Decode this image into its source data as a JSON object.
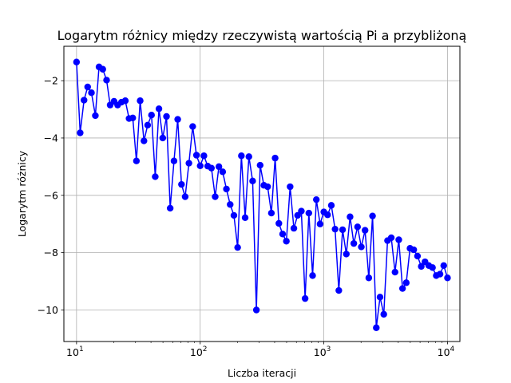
{
  "chart_data": {
    "type": "line",
    "title": "Logarytm różnicy między rzeczywistą wartością Pi a przybliżoną",
    "xlabel": "Liczba iteracji",
    "ylabel": "Logarytm różnicy",
    "x_scale": "log",
    "xlim": [
      7.9,
      12600
    ],
    "ylim": [
      -11.1,
      -0.8
    ],
    "grid": true,
    "x_ticks": [
      {
        "value": 10,
        "base": "10",
        "exp": "1"
      },
      {
        "value": 100,
        "base": "10",
        "exp": "2"
      },
      {
        "value": 1000,
        "base": "10",
        "exp": "3"
      },
      {
        "value": 10000,
        "base": "10",
        "exp": "4"
      }
    ],
    "y_ticks": [
      {
        "value": -10,
        "label": "−10"
      },
      {
        "value": -8,
        "label": "−8"
      },
      {
        "value": -6,
        "label": "−6"
      },
      {
        "value": -4,
        "label": "−4"
      },
      {
        "value": -2,
        "label": "−2"
      }
    ],
    "series": [
      {
        "color": "#0000ff",
        "marker": "circle",
        "x": [
          10,
          10.7,
          11.5,
          12.3,
          13.2,
          14.2,
          15.2,
          16.3,
          17.5,
          18.7,
          20.1,
          21.5,
          23.1,
          24.8,
          26.6,
          28.5,
          30.5,
          32.7,
          35.1,
          37.6,
          40.4,
          43.3,
          46.4,
          49.8,
          53.4,
          57.2,
          61.4,
          65.8,
          70.6,
          75.6,
          81.1,
          87,
          93.3,
          100,
          107.2,
          115,
          123.3,
          132.2,
          141.7,
          152,
          163,
          174.8,
          187.4,
          200.9,
          215.4,
          231,
          247.7,
          265.6,
          284.8,
          305.4,
          327.5,
          351.1,
          376.5,
          403.7,
          432.9,
          464.2,
          497.7,
          533.7,
          572.2,
          613.6,
          657.9,
          705.5,
          756.5,
          811.1,
          869.7,
          932.6,
          1000,
          1072.3,
          1149.8,
          1232.8,
          1321.9,
          1417.5,
          1520,
          1629.8,
          1747.5,
          1873.8,
          2009.2,
          2154.4,
          2310.1,
          2477.1,
          2656.1,
          2848,
          3053.9,
          3274.5,
          3511.2,
          3764.9,
          4037,
          4328.8,
          4641.6,
          4977,
          5336.7,
          5722.4,
          6135.9,
          6579.3,
          7054.8,
          7564.6,
          8111.3,
          8697.5,
          9326,
          10000
        ],
        "y": [
          -1.35,
          -3.82,
          -2.68,
          -2.22,
          -2.42,
          -3.22,
          -1.52,
          -1.6,
          -1.98,
          -2.85,
          -2.72,
          -2.85,
          -2.75,
          -2.7,
          -3.32,
          -3.3,
          -4.8,
          -2.7,
          -4.1,
          -3.55,
          -3.2,
          -5.35,
          -2.98,
          -4.0,
          -3.25,
          -6.45,
          -4.8,
          -3.35,
          -5.62,
          -6.05,
          -4.88,
          -3.6,
          -4.6,
          -4.97,
          -4.62,
          -4.98,
          -5.05,
          -6.05,
          -5.0,
          -5.18,
          -5.78,
          -6.32,
          -6.7,
          -7.82,
          -4.62,
          -6.78,
          -4.65,
          -5.5,
          -10.0,
          -4.95,
          -5.65,
          -5.7,
          -6.62,
          -4.7,
          -6.98,
          -7.35,
          -7.6,
          -5.7,
          -7.15,
          -6.7,
          -6.55,
          -9.6,
          -6.62,
          -8.8,
          -6.15,
          -7.0,
          -6.58,
          -6.68,
          -6.35,
          -7.18,
          -9.32,
          -7.2,
          -8.05,
          -6.75,
          -7.68,
          -7.1,
          -7.8,
          -7.22,
          -8.88,
          -6.72,
          -10.62,
          -9.55,
          -10.15,
          -7.58,
          -7.48,
          -8.68,
          -7.55,
          -9.25,
          -9.05,
          -7.85,
          -7.9,
          -8.12,
          -8.48,
          -8.32,
          -8.45,
          -8.52,
          -8.8,
          -8.75,
          -8.45,
          -8.88
        ]
      }
    ]
  }
}
